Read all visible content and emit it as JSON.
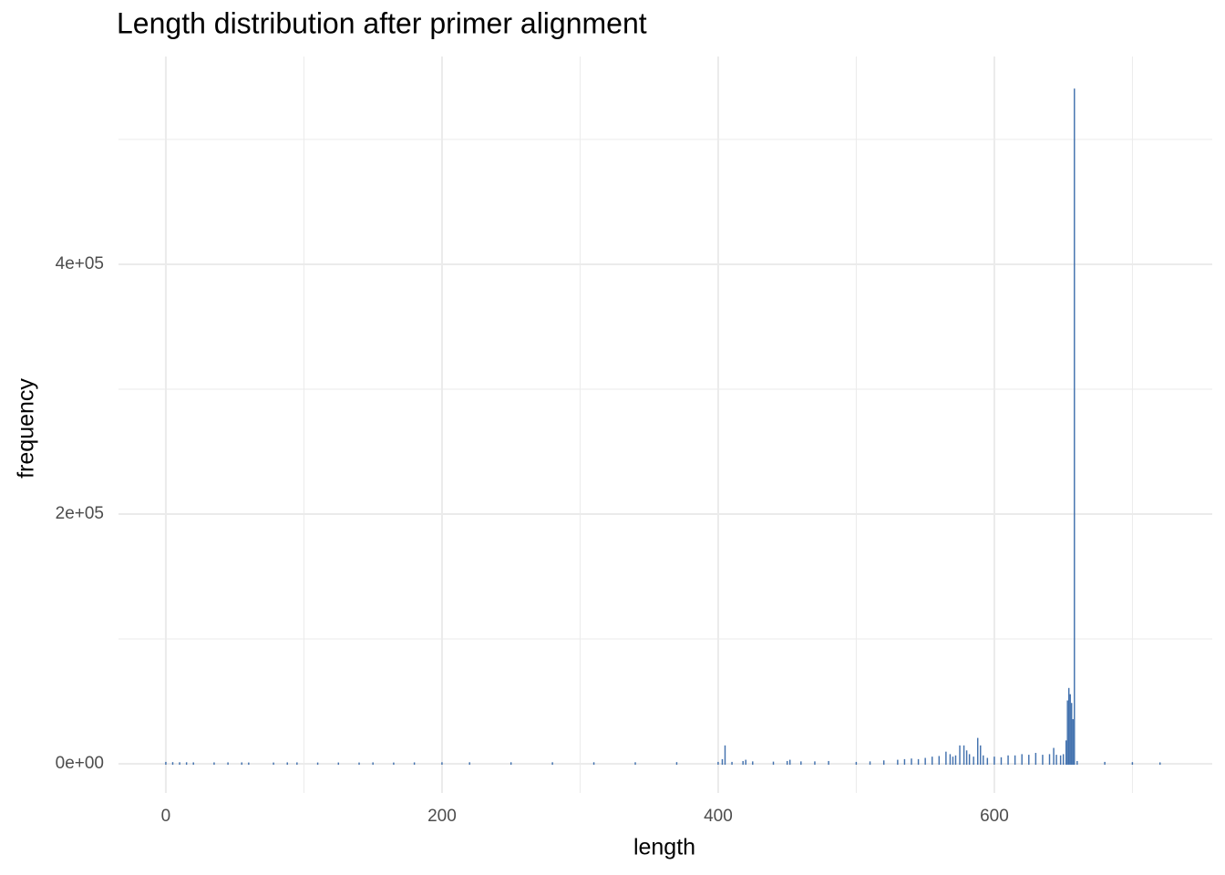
{
  "chart_data": {
    "type": "bar",
    "title": "Length distribution after primer alignment",
    "x_label": "length",
    "y_label": "frequency",
    "color": "#4271ae",
    "x": [
      0,
      5,
      10,
      15,
      20,
      35,
      45,
      55,
      60,
      78,
      88,
      95,
      110,
      125,
      140,
      150,
      165,
      180,
      200,
      220,
      250,
      280,
      310,
      340,
      370,
      400,
      403,
      405,
      410,
      418,
      420,
      425,
      440,
      450,
      452,
      460,
      470,
      480,
      500,
      510,
      520,
      530,
      535,
      540,
      545,
      550,
      555,
      560,
      565,
      568,
      570,
      572,
      575,
      578,
      580,
      582,
      585,
      588,
      590,
      592,
      595,
      600,
      605,
      610,
      615,
      620,
      625,
      630,
      635,
      640,
      643,
      645,
      648,
      650,
      652,
      653,
      654,
      655,
      656,
      657,
      658,
      660,
      680,
      700,
      720
    ],
    "values": [
      800,
      600,
      500,
      500,
      400,
      400,
      400,
      400,
      300,
      300,
      400,
      400,
      300,
      300,
      300,
      400,
      300,
      400,
      500,
      500,
      500,
      500,
      500,
      500,
      600,
      800,
      3000,
      14000,
      800,
      1500,
      2500,
      1200,
      1000,
      1500,
      2500,
      1200,
      1200,
      1500,
      800,
      1200,
      2000,
      2500,
      3000,
      3500,
      3000,
      4000,
      5000,
      5500,
      9000,
      7000,
      5000,
      6000,
      14000,
      14000,
      10000,
      7000,
      5000,
      20000,
      14000,
      6000,
      4000,
      5000,
      4500,
      6000,
      6000,
      7000,
      6500,
      8000,
      6500,
      7000,
      12000,
      6500,
      6000,
      7000,
      18000,
      50000,
      60000,
      55000,
      48000,
      35000,
      540000,
      1500,
      800,
      600,
      400
    ],
    "xlim": [
      -34.3,
      757.8
    ],
    "ylim": [
      -23358,
      566423
    ],
    "xticks": [
      0,
      200,
      400,
      600
    ],
    "minor_xticks": [
      100,
      300,
      500,
      700
    ],
    "yticks": [
      {
        "value": 0,
        "label": "0e+00"
      },
      {
        "value": 200000,
        "label": "2e+05"
      },
      {
        "value": 400000,
        "label": "4e+05"
      }
    ],
    "minor_yticks": [
      100000,
      300000,
      500000
    ],
    "grid": true
  }
}
